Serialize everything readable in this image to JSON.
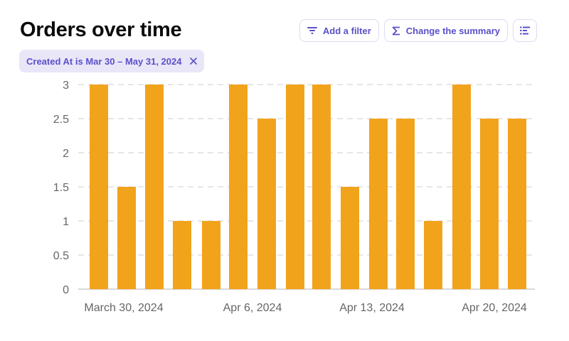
{
  "header": {
    "title": "Orders over time"
  },
  "toolbar": {
    "add_filter_label": "Add a filter",
    "change_summary_label": "Change the summary",
    "add_filter_icon": "filter-icon",
    "change_summary_icon": "sigma-icon",
    "view_toggle_icon": "list-view-icon"
  },
  "filter_chip": {
    "label": "Created At is Mar 30 – May 31, 2024",
    "remove_icon": "close-icon"
  },
  "colors": {
    "bar": "#f2a31c",
    "accent": "#5a50c8",
    "chip_bg": "#e9e6f8",
    "grid": "#dddddd"
  },
  "chart_data": {
    "type": "bar",
    "title": "",
    "xlabel": "",
    "ylabel": "",
    "ylim": [
      0,
      3
    ],
    "yticks": [
      "0",
      "0.5",
      "1",
      "1.5",
      "2",
      "2.5",
      "3"
    ],
    "grid": true,
    "x_tick_labels": [
      "March 30, 2024",
      "Apr 6, 2024",
      "Apr 13, 2024",
      "Apr 20, 2024"
    ],
    "values": [
      3,
      1.5,
      3,
      1,
      1,
      3,
      2.5,
      3,
      3,
      1.5,
      2.5,
      2.5,
      1,
      3,
      2.5,
      2.5
    ]
  }
}
